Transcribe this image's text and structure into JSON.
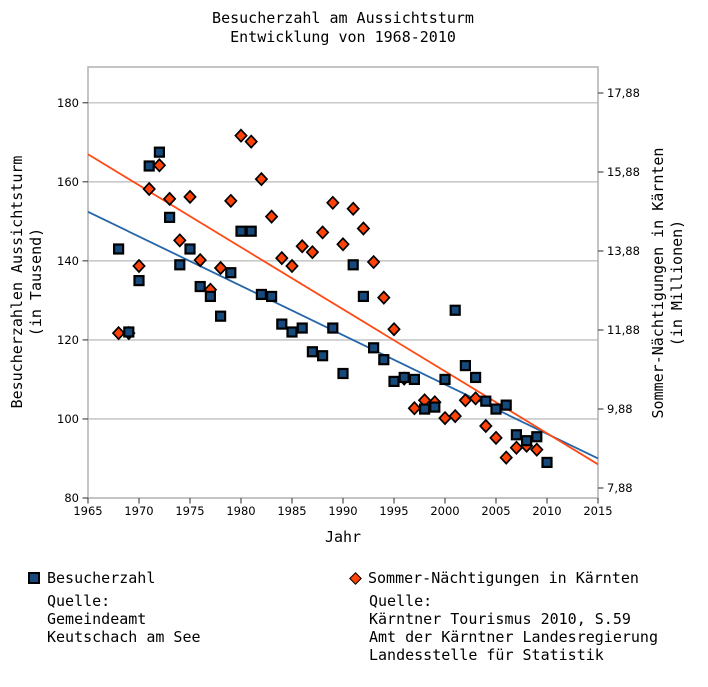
{
  "title": {
    "line1": "Besucherzahl am Aussichtsturm",
    "line2": "Entwicklung von 1968-2010"
  },
  "chart_data": {
    "type": "scatter",
    "grid": true,
    "legend_position": "bottom",
    "x_axis": {
      "label": "Jahr",
      "min": 1965,
      "max": 2015,
      "tick_step": 5,
      "ticks": [
        1965,
        1970,
        1975,
        1980,
        1985,
        1990,
        1995,
        2000,
        2005,
        2010,
        2015
      ]
    },
    "y_axis_left": {
      "label_line1": "Besucherzahlen Aussichtsturm",
      "label_line2": "(in Tausend)",
      "min": 80,
      "max": 180,
      "tick_step": 20,
      "ticks": [
        80,
        100,
        120,
        140,
        160,
        180
      ]
    },
    "y_axis_right": {
      "label_line1": "Sommer-Nächtigungen in Kärnten",
      "label_line2": "(in Millionen)",
      "tick_labels": [
        "7,88",
        "9,88",
        "11,88",
        "13,88",
        "15,88",
        "17,88"
      ],
      "tick_values": [
        7.88,
        9.88,
        11.88,
        13.88,
        15.88,
        17.88
      ]
    },
    "series": [
      {
        "name": "Sommer-Nächtigungen in Kärnten",
        "axis": "right",
        "marker": "diamond",
        "color": "#FF4308",
        "points": [
          [
            1968,
            11.8
          ],
          [
            1969,
            11.8
          ],
          [
            1970,
            13.5
          ],
          [
            1971,
            15.45
          ],
          [
            1972,
            16.05
          ],
          [
            1973,
            15.2
          ],
          [
            1974,
            14.15
          ],
          [
            1975,
            15.25
          ],
          [
            1976,
            13.65
          ],
          [
            1977,
            12.9
          ],
          [
            1978,
            13.45
          ],
          [
            1979,
            15.15
          ],
          [
            1980,
            16.8
          ],
          [
            1981,
            16.65
          ],
          [
            1982,
            15.7
          ],
          [
            1983,
            14.75
          ],
          [
            1984,
            13.7
          ],
          [
            1985,
            13.5
          ],
          [
            1986,
            14.0
          ],
          [
            1987,
            13.85
          ],
          [
            1988,
            14.35
          ],
          [
            1989,
            15.1
          ],
          [
            1990,
            14.05
          ],
          [
            1991,
            14.95
          ],
          [
            1992,
            14.45
          ],
          [
            1993,
            13.6
          ],
          [
            1994,
            12.7
          ],
          [
            1995,
            11.9
          ],
          [
            1996,
            10.65
          ],
          [
            1997,
            9.9
          ],
          [
            1998,
            10.1
          ],
          [
            1999,
            10.05
          ],
          [
            2000,
            9.65
          ],
          [
            2001,
            9.7
          ],
          [
            2002,
            10.1
          ],
          [
            2003,
            10.15
          ],
          [
            2004,
            9.45
          ],
          [
            2005,
            9.15
          ],
          [
            2006,
            8.65
          ],
          [
            2007,
            8.9
          ],
          [
            2008,
            8.95
          ],
          [
            2009,
            8.85
          ]
        ]
      },
      {
        "name": "Besucherzahl",
        "axis": "left",
        "marker": "square",
        "color": "#164A7D",
        "points": [
          [
            1968,
            143
          ],
          [
            1969,
            122
          ],
          [
            1970,
            135
          ],
          [
            1971,
            164
          ],
          [
            1972,
            167.5
          ],
          [
            1973,
            151
          ],
          [
            1974,
            139
          ],
          [
            1975,
            143
          ],
          [
            1976,
            133.5
          ],
          [
            1977,
            131
          ],
          [
            1978,
            126
          ],
          [
            1979,
            137
          ],
          [
            1980,
            147.5
          ],
          [
            1981,
            147.5
          ],
          [
            1982,
            131.5
          ],
          [
            1983,
            131
          ],
          [
            1984,
            124
          ],
          [
            1985,
            122
          ],
          [
            1986,
            123
          ],
          [
            1987,
            117
          ],
          [
            1988,
            116
          ],
          [
            1989,
            123
          ],
          [
            1990,
            111.5
          ],
          [
            1991,
            139
          ],
          [
            1992,
            131
          ],
          [
            1993,
            118
          ],
          [
            1994,
            115
          ],
          [
            1995,
            109.5
          ],
          [
            1996,
            110.5
          ],
          [
            1997,
            110
          ],
          [
            1998,
            102.5
          ],
          [
            1999,
            103
          ],
          [
            2000,
            110
          ],
          [
            2001,
            127.5
          ],
          [
            2002,
            113.5
          ],
          [
            2003,
            110.5
          ],
          [
            2004,
            104.5
          ],
          [
            2005,
            102.5
          ],
          [
            2006,
            103.5
          ],
          [
            2007,
            96
          ],
          [
            2008,
            94.5
          ],
          [
            2009,
            95.5
          ],
          [
            2010,
            89
          ]
        ]
      }
    ],
    "trend_lines": [
      {
        "series": "Besucherzahl",
        "axis": "left",
        "color": "#2565A8",
        "start": [
          1965,
          152.4
        ],
        "end": [
          2015,
          90.0
        ]
      },
      {
        "series": "Sommer-Nächtigungen in Kärnten",
        "axis": "right",
        "color": "#FF4A15",
        "start": [
          1965,
          16.33
        ],
        "end": [
          2015,
          8.48
        ]
      }
    ]
  },
  "legend_left": {
    "label": "Besucherzahl",
    "source_lines": [
      "Quelle:",
      "Gemeindeamt",
      "Keutschach am See"
    ]
  },
  "legend_right": {
    "label": "Sommer-Nächtigungen in Kärnten",
    "source_lines": [
      "Quelle:",
      "Kärntner Tourismus 2010, S.59",
      "Amt der Kärntner Landesregierung",
      "Landesstelle für Statistik"
    ]
  },
  "colors": {
    "besucherzahl_marker": "#164A7D",
    "naechtigungen_marker": "#FF4308",
    "trend_blue": "#2565A8",
    "trend_orange": "#FF4A15",
    "gridline": "#C9C9C9",
    "plot_border": "#B5B5B5"
  }
}
